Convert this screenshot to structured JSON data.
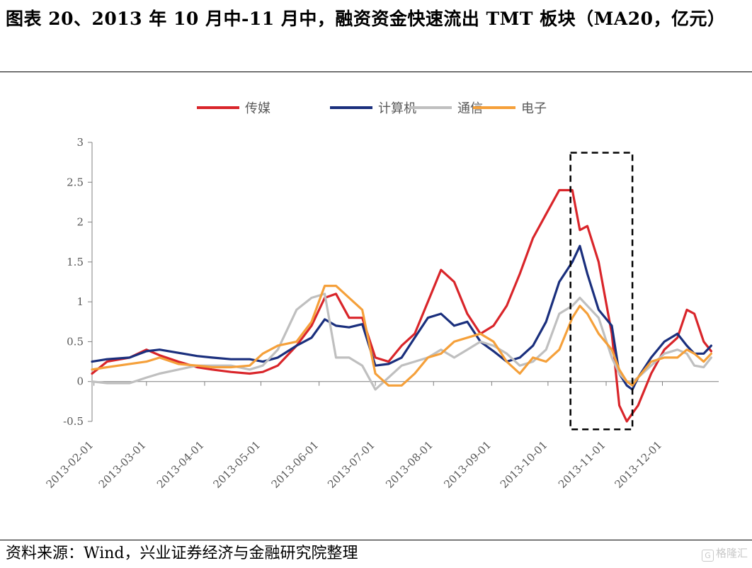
{
  "title": "图表 20、2013 年 10 月中-11 月中，融资资金快速流出 TMT 板块（MA20，亿元）",
  "source": "资料来源：Wind，兴业证券经济与金融研究院整理",
  "watermark": "格隆汇",
  "chart_data": {
    "type": "line",
    "title": "",
    "xlabel": "",
    "ylabel": "",
    "ylim": [
      -0.5,
      3
    ],
    "yticks": [
      "-0.5",
      "0",
      "0.5",
      "1",
      "1.5",
      "2",
      "2.5",
      "3"
    ],
    "xticks": [
      "2013-02-01",
      "2013-03-01",
      "2013-04-01",
      "2013-05-01",
      "2013-06-01",
      "2013-07-01",
      "2013-08-01",
      "2013-09-01",
      "2013-10-01",
      "2013-11-01",
      "2013-12-01"
    ],
    "grid": false,
    "legend_position": "top-center",
    "highlight_box": {
      "x_from": "2013-10-13",
      "x_to": "2013-11-15",
      "y_from": -0.6,
      "y_to": 2.87,
      "style": "dashed"
    },
    "series": [
      {
        "name": "传媒",
        "color": "#d9252a",
        "x": [
          "2013-01-31",
          "2013-02-08",
          "2013-02-20",
          "2013-03-01",
          "2013-03-08",
          "2013-03-18",
          "2013-03-28",
          "2013-04-05",
          "2013-04-15",
          "2013-04-25",
          "2013-05-02",
          "2013-05-10",
          "2013-05-20",
          "2013-05-28",
          "2013-06-04",
          "2013-06-10",
          "2013-06-17",
          "2013-06-24",
          "2013-07-01",
          "2013-07-08",
          "2013-07-15",
          "2013-07-22",
          "2013-07-29",
          "2013-08-05",
          "2013-08-12",
          "2013-08-19",
          "2013-08-26",
          "2013-09-02",
          "2013-09-09",
          "2013-09-16",
          "2013-09-23",
          "2013-09-30",
          "2013-10-07",
          "2013-10-14",
          "2013-10-18",
          "2013-10-22",
          "2013-10-28",
          "2013-11-04",
          "2013-11-08",
          "2013-11-12",
          "2013-11-15",
          "2013-11-18",
          "2013-11-25",
          "2013-12-02",
          "2013-12-09",
          "2013-12-14",
          "2013-12-18",
          "2013-12-23",
          "2013-12-27"
        ],
        "values": [
          0.1,
          0.25,
          0.3,
          0.4,
          0.33,
          0.25,
          0.18,
          0.15,
          0.12,
          0.1,
          0.12,
          0.2,
          0.45,
          0.7,
          1.05,
          1.1,
          0.8,
          0.8,
          0.3,
          0.25,
          0.45,
          0.6,
          1.0,
          1.4,
          1.25,
          0.85,
          0.6,
          0.7,
          0.95,
          1.35,
          1.8,
          2.1,
          2.4,
          2.4,
          1.9,
          1.95,
          1.5,
          0.6,
          -0.3,
          -0.5,
          -0.4,
          -0.3,
          0.1,
          0.4,
          0.55,
          0.9,
          0.85,
          0.5,
          0.38
        ]
      },
      {
        "name": "计算机",
        "color": "#1a2f7d",
        "x": [
          "2013-01-31",
          "2013-02-08",
          "2013-02-20",
          "2013-03-01",
          "2013-03-08",
          "2013-03-18",
          "2013-03-28",
          "2013-04-05",
          "2013-04-15",
          "2013-04-25",
          "2013-05-02",
          "2013-05-10",
          "2013-05-20",
          "2013-05-28",
          "2013-06-04",
          "2013-06-10",
          "2013-06-17",
          "2013-06-24",
          "2013-07-01",
          "2013-07-08",
          "2013-07-15",
          "2013-07-22",
          "2013-07-29",
          "2013-08-05",
          "2013-08-12",
          "2013-08-19",
          "2013-08-26",
          "2013-09-02",
          "2013-09-09",
          "2013-09-16",
          "2013-09-23",
          "2013-09-30",
          "2013-10-07",
          "2013-10-14",
          "2013-10-18",
          "2013-10-22",
          "2013-10-28",
          "2013-11-04",
          "2013-11-08",
          "2013-11-12",
          "2013-11-15",
          "2013-11-18",
          "2013-11-25",
          "2013-12-02",
          "2013-12-09",
          "2013-12-14",
          "2013-12-18",
          "2013-12-23",
          "2013-12-27"
        ],
        "values": [
          0.25,
          0.28,
          0.3,
          0.38,
          0.4,
          0.36,
          0.32,
          0.3,
          0.28,
          0.28,
          0.25,
          0.3,
          0.45,
          0.55,
          0.78,
          0.7,
          0.68,
          0.72,
          0.2,
          0.22,
          0.3,
          0.55,
          0.8,
          0.85,
          0.7,
          0.75,
          0.5,
          0.38,
          0.25,
          0.3,
          0.45,
          0.75,
          1.25,
          1.5,
          1.7,
          1.35,
          0.9,
          0.7,
          0.1,
          -0.05,
          -0.1,
          0.05,
          0.3,
          0.5,
          0.6,
          0.45,
          0.35,
          0.35,
          0.45
        ]
      },
      {
        "name": "通信",
        "color": "#bfbfbf",
        "x": [
          "2013-01-31",
          "2013-02-08",
          "2013-02-20",
          "2013-03-01",
          "2013-03-08",
          "2013-03-18",
          "2013-03-28",
          "2013-04-05",
          "2013-04-15",
          "2013-04-25",
          "2013-05-02",
          "2013-05-10",
          "2013-05-20",
          "2013-05-28",
          "2013-06-04",
          "2013-06-10",
          "2013-06-17",
          "2013-06-24",
          "2013-07-01",
          "2013-07-08",
          "2013-07-15",
          "2013-07-22",
          "2013-07-29",
          "2013-08-05",
          "2013-08-12",
          "2013-08-19",
          "2013-08-26",
          "2013-09-02",
          "2013-09-09",
          "2013-09-16",
          "2013-09-23",
          "2013-09-30",
          "2013-10-07",
          "2013-10-14",
          "2013-10-18",
          "2013-10-22",
          "2013-10-28",
          "2013-11-04",
          "2013-11-08",
          "2013-11-12",
          "2013-11-15",
          "2013-11-18",
          "2013-11-25",
          "2013-12-02",
          "2013-12-09",
          "2013-12-14",
          "2013-12-18",
          "2013-12-23",
          "2013-12-27"
        ],
        "values": [
          0.0,
          -0.02,
          -0.02,
          0.05,
          0.1,
          0.15,
          0.2,
          0.2,
          0.2,
          0.15,
          0.2,
          0.4,
          0.9,
          1.05,
          1.1,
          0.3,
          0.3,
          0.2,
          -0.1,
          0.05,
          0.2,
          0.25,
          0.3,
          0.4,
          0.3,
          0.4,
          0.5,
          0.45,
          0.35,
          0.2,
          0.25,
          0.4,
          0.85,
          0.95,
          1.05,
          0.95,
          0.8,
          0.3,
          0.1,
          0.0,
          0.0,
          0.05,
          0.2,
          0.35,
          0.4,
          0.35,
          0.2,
          0.18,
          0.3
        ]
      },
      {
        "name": "电子",
        "color": "#f5a03a",
        "x": [
          "2013-01-31",
          "2013-02-08",
          "2013-02-20",
          "2013-03-01",
          "2013-03-08",
          "2013-03-18",
          "2013-03-28",
          "2013-04-05",
          "2013-04-15",
          "2013-04-25",
          "2013-05-02",
          "2013-05-10",
          "2013-05-20",
          "2013-05-28",
          "2013-06-04",
          "2013-06-10",
          "2013-06-17",
          "2013-06-24",
          "2013-07-01",
          "2013-07-08",
          "2013-07-15",
          "2013-07-22",
          "2013-07-29",
          "2013-08-05",
          "2013-08-12",
          "2013-08-19",
          "2013-08-26",
          "2013-09-02",
          "2013-09-09",
          "2013-09-16",
          "2013-09-23",
          "2013-09-30",
          "2013-10-07",
          "2013-10-14",
          "2013-10-18",
          "2013-10-22",
          "2013-10-28",
          "2013-11-04",
          "2013-11-08",
          "2013-11-12",
          "2013-11-15",
          "2013-11-18",
          "2013-11-25",
          "2013-12-02",
          "2013-12-09",
          "2013-12-14",
          "2013-12-18",
          "2013-12-23",
          "2013-12-27"
        ],
        "values": [
          0.15,
          0.18,
          0.22,
          0.25,
          0.3,
          0.22,
          0.2,
          0.18,
          0.18,
          0.2,
          0.35,
          0.45,
          0.5,
          0.75,
          1.2,
          1.2,
          1.05,
          0.9,
          0.1,
          -0.05,
          -0.05,
          0.1,
          0.3,
          0.35,
          0.5,
          0.55,
          0.6,
          0.5,
          0.25,
          0.1,
          0.3,
          0.25,
          0.4,
          0.8,
          0.95,
          0.85,
          0.6,
          0.4,
          0.15,
          0.0,
          -0.05,
          0.05,
          0.25,
          0.3,
          0.3,
          0.4,
          0.35,
          0.25,
          0.35
        ]
      }
    ]
  }
}
